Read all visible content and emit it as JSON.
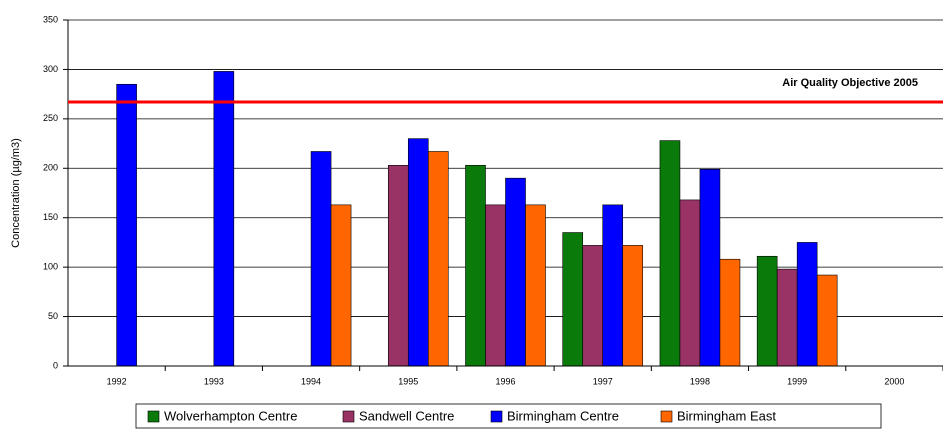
{
  "chart_data": {
    "type": "bar",
    "y_label": "Concentration (µg/m3)",
    "categories": [
      "1992",
      "1993",
      "1994",
      "1995",
      "1996",
      "1997",
      "1998",
      "1999",
      "2000"
    ],
    "series": [
      {
        "name": "Wolverhampton Centre",
        "color": "#0a7a0a",
        "values": [
          null,
          null,
          null,
          null,
          203,
          135,
          228,
          111,
          null
        ]
      },
      {
        "name": "Sandwell Centre",
        "color": "#993366",
        "values": [
          null,
          null,
          null,
          203,
          163,
          122,
          168,
          98,
          null
        ]
      },
      {
        "name": "Birmingham Centre",
        "color": "#0000ff",
        "values": [
          285,
          298,
          217,
          230,
          190,
          163,
          199,
          125,
          null
        ]
      },
      {
        "name": "Birmingham East",
        "color": "#ff6600",
        "values": [
          null,
          null,
          163,
          217,
          163,
          122,
          108,
          92,
          null
        ]
      }
    ],
    "objective": {
      "value": 267,
      "label": "Air Quality Objective 2005",
      "color": "#ff0000"
    },
    "ylim": [
      0,
      350
    ],
    "yticks": [
      0,
      50,
      100,
      150,
      200,
      250,
      300,
      350
    ],
    "grid": true,
    "legend": "bottom"
  }
}
